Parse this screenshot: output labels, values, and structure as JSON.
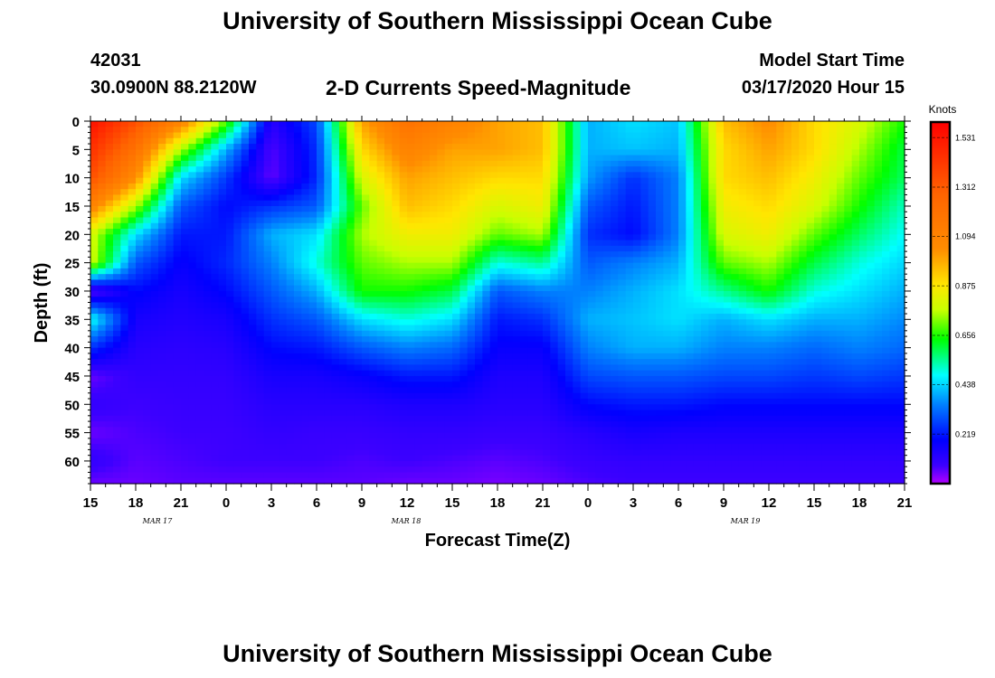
{
  "header": {
    "title_top": "University of Southern Mississippi Ocean Cube",
    "title_bottom": "University of Southern Mississippi Ocean Cube",
    "station_id": "42031",
    "station_coords": "30.0900N 88.2120W",
    "chart_title": "2-D Currents Speed-Magnitude",
    "model_start_label": "Model Start Time",
    "model_start_value": "03/17/2020 Hour 15"
  },
  "chart_data": {
    "type": "heatmap",
    "title": "2-D Currents Speed-Magnitude",
    "xlabel": "Forecast Time(Z)",
    "ylabel": "Depth (ft)",
    "x_ticks": [
      "15",
      "18",
      "21",
      "0",
      "3",
      "6",
      "9",
      "12",
      "15",
      "18",
      "21",
      "0",
      "3",
      "6",
      "9",
      "12",
      "15",
      "18",
      "21"
    ],
    "date_labels": [
      "MAR 17",
      "MAR 18",
      "MAR 19"
    ],
    "y_ticks": [
      "0",
      "5",
      "10",
      "15",
      "20",
      "25",
      "30",
      "35",
      "40",
      "45",
      "50",
      "55",
      "60"
    ],
    "ylim": [
      0,
      64
    ],
    "colorbar": {
      "unit": "Knots",
      "ticks": [
        "1.531",
        "1.312",
        "1.094",
        "0.875",
        "0.656",
        "0.438",
        "0.219"
      ],
      "range": [
        0,
        1.6
      ]
    },
    "grid": "y-dashes on colorbar only",
    "z_grid": {
      "x_hours": [
        0,
        3,
        6,
        9,
        12,
        15,
        18,
        21,
        24,
        27,
        30,
        33,
        36,
        39,
        42,
        45,
        48,
        51,
        54
      ],
      "depths_ft": [
        0,
        5,
        10,
        15,
        20,
        25,
        30,
        35,
        40,
        45,
        50,
        55,
        60,
        64
      ],
      "values_knots": [
        [
          1.55,
          1.45,
          1.35,
          1.1,
          0.8,
          0.8,
          0.05,
          0.5,
          0.25,
          0.05,
          0.1,
          0.05,
          0.1,
          0.05
        ],
        [
          1.35,
          1.2,
          1.05,
          0.75,
          0.45,
          0.3,
          0.2,
          0.15,
          0.12,
          0.1,
          0.08,
          0.07,
          0.06,
          0.05
        ],
        [
          1.1,
          0.75,
          0.45,
          0.3,
          0.22,
          0.18,
          0.15,
          0.13,
          0.11,
          0.1,
          0.09,
          0.08,
          0.07,
          0.06
        ],
        [
          0.7,
          0.4,
          0.26,
          0.2,
          0.22,
          0.24,
          0.2,
          0.15,
          0.12,
          0.1,
          0.09,
          0.08,
          0.08,
          0.06
        ],
        [
          0.12,
          0.06,
          0.05,
          0.25,
          0.4,
          0.35,
          0.3,
          0.25,
          0.2,
          0.15,
          0.12,
          0.1,
          0.08,
          0.06
        ],
        [
          0.28,
          0.25,
          0.24,
          0.3,
          0.45,
          0.5,
          0.4,
          0.3,
          0.22,
          0.15,
          0.12,
          0.09,
          0.08,
          0.06
        ],
        [
          1.0,
          0.9,
          0.8,
          0.7,
          0.75,
          0.7,
          0.65,
          0.45,
          0.3,
          0.18,
          0.12,
          0.09,
          0.07,
          0.06
        ],
        [
          1.2,
          1.1,
          1.0,
          0.95,
          0.85,
          0.75,
          0.65,
          0.5,
          0.35,
          0.22,
          0.14,
          0.1,
          0.08,
          0.05
        ],
        [
          1.1,
          1.0,
          0.95,
          0.9,
          0.85,
          0.75,
          0.6,
          0.45,
          0.32,
          0.22,
          0.14,
          0.1,
          0.07,
          0.05
        ],
        [
          1.0,
          1.0,
          0.9,
          0.8,
          0.7,
          0.5,
          0.3,
          0.22,
          0.18,
          0.14,
          0.12,
          0.09,
          0.06,
          0.04
        ],
        [
          0.95,
          0.95,
          0.9,
          0.85,
          0.75,
          0.55,
          0.35,
          0.25,
          0.18,
          0.14,
          0.12,
          0.09,
          0.07,
          0.05
        ],
        [
          0.4,
          0.4,
          0.38,
          0.3,
          0.25,
          0.3,
          0.35,
          0.4,
          0.35,
          0.28,
          0.2,
          0.12,
          0.09,
          0.07
        ],
        [
          0.45,
          0.42,
          0.25,
          0.22,
          0.2,
          0.35,
          0.4,
          0.42,
          0.4,
          0.3,
          0.22,
          0.15,
          0.1,
          0.08
        ],
        [
          0.42,
          0.4,
          0.35,
          0.35,
          0.35,
          0.4,
          0.45,
          0.45,
          0.4,
          0.3,
          0.22,
          0.14,
          0.1,
          0.08
        ],
        [
          0.95,
          0.9,
          0.9,
          0.85,
          0.8,
          0.7,
          0.55,
          0.4,
          0.35,
          0.28,
          0.2,
          0.14,
          0.1,
          0.08
        ],
        [
          1.05,
          1.0,
          0.95,
          0.9,
          0.85,
          0.75,
          0.65,
          0.45,
          0.35,
          0.28,
          0.2,
          0.14,
          0.1,
          0.08
        ],
        [
          0.9,
          0.9,
          0.85,
          0.8,
          0.7,
          0.6,
          0.5,
          0.4,
          0.32,
          0.26,
          0.2,
          0.14,
          0.1,
          0.08
        ],
        [
          0.8,
          0.75,
          0.7,
          0.65,
          0.58,
          0.5,
          0.45,
          0.4,
          0.35,
          0.28,
          0.2,
          0.14,
          0.1,
          0.08
        ],
        [
          0.65,
          0.6,
          0.58,
          0.52,
          0.48,
          0.44,
          0.4,
          0.36,
          0.32,
          0.26,
          0.2,
          0.14,
          0.1,
          0.08
        ]
      ]
    }
  }
}
